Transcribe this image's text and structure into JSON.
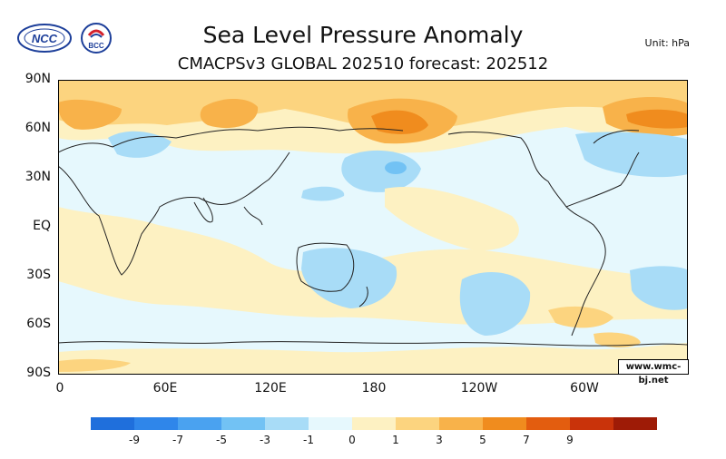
{
  "title": "Sea Level Pressure Anomaly",
  "subtitle": "CMACPSv3 GLOBAL 202510 forecast: 202512",
  "unit": "Unit: hPa",
  "watermark": "www.wmc-bj.net",
  "logos": {
    "ncc": "NCC",
    "bcc": "BCC"
  },
  "axes": {
    "lat_labels": [
      "90N",
      "60N",
      "30N",
      "EQ",
      "30S",
      "60S",
      "90S"
    ],
    "lon_labels": [
      "0",
      "60E",
      "120E",
      "180",
      "120W",
      "60W"
    ]
  },
  "colorbar": {
    "colors": [
      "#1f6fdc",
      "#2f86ea",
      "#4aa2f0",
      "#72c2f4",
      "#a8dcf7",
      "#e6f8fd",
      "#fdf1c2",
      "#fcd47f",
      "#f8b24a",
      "#f08c1e",
      "#e35d0f",
      "#c9330a",
      "#9e1b06"
    ],
    "labels": [
      "-9",
      "-7",
      "-5",
      "-3",
      "-1",
      "0",
      "1",
      "3",
      "5",
      "7",
      "9"
    ]
  }
}
